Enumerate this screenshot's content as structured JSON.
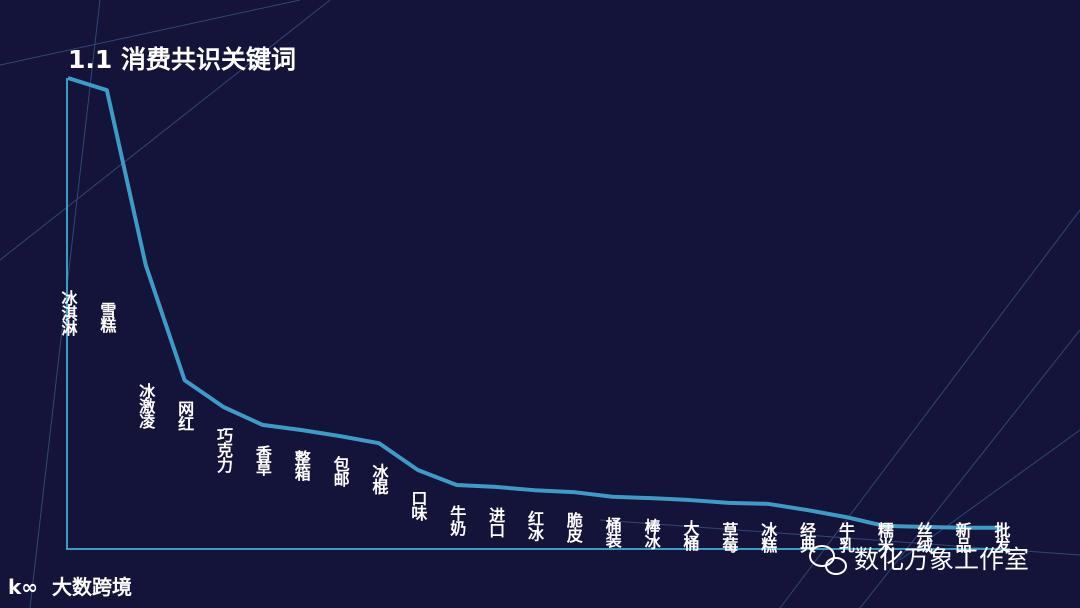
{
  "chart_data": {
    "type": "line",
    "title": "1.1 消费共识关键词",
    "categories": [
      "冰淇淋",
      "雪糕",
      "冰激凌",
      "网红",
      "巧克力",
      "香草",
      "整箱",
      "包邮",
      "冰棍",
      "口味",
      "牛奶",
      "进口",
      "红冰",
      "脆皮",
      "桶装",
      "棒冰",
      "大桶",
      "草莓",
      "冰糕",
      "经典",
      "牛乳",
      "糯米",
      "丝绒",
      "新品",
      "批发"
    ],
    "values": [
      100,
      97.4,
      60.2,
      35.7,
      30,
      26.2,
      25.1,
      23.8,
      22.3,
      16.6,
      13.4,
      13,
      12.3,
      11.9,
      10.9,
      10.6,
      10.2,
      9.6,
      9.4,
      8.1,
      6.6,
      4.7,
      4.5,
      4.3,
      4.3
    ],
    "color": "#3d9cc6",
    "ylim": [
      0,
      100
    ]
  },
  "logo_text": "大数跨境",
  "watermark": "数化万象工作室"
}
